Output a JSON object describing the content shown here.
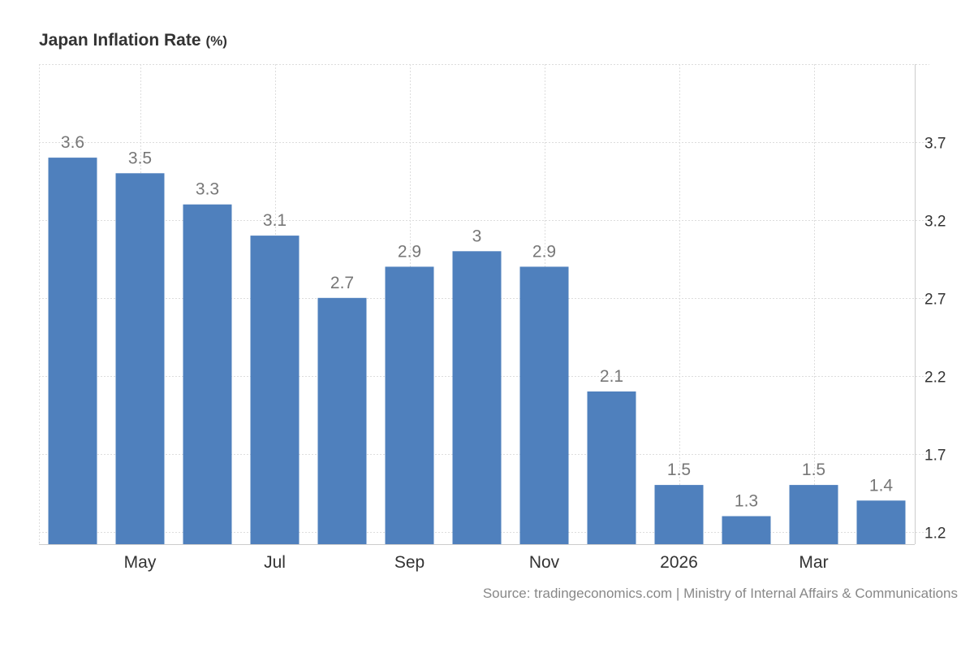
{
  "header": {
    "title": "Japan Inflation Rate",
    "unit": "(%)"
  },
  "footer": {
    "source": "Source: tradingeconomics.com | Ministry of Internal Affairs & Communications"
  },
  "colors": {
    "bar": "#4f80bd",
    "data_label": "#777777",
    "axis_text": "#333333",
    "grid": "#dddddd",
    "axis_line": "#cccccc"
  },
  "chart_data": {
    "type": "bar",
    "title": "Japan Inflation Rate",
    "unit": "(%)",
    "values": [
      3.6,
      3.5,
      3.3,
      3.1,
      2.7,
      2.9,
      3.0,
      2.9,
      2.1,
      1.5,
      1.3,
      1.5,
      1.4
    ],
    "data_labels": [
      "3.6",
      "3.5",
      "3.3",
      "3.1",
      "2.7",
      "2.9",
      "3",
      "2.9",
      "2.1",
      "1.5",
      "1.3",
      "1.5",
      "1.4"
    ],
    "x_tick_labels": [
      "",
      "May",
      "",
      "Jul",
      "",
      "Sep",
      "",
      "Nov",
      "",
      "2026",
      "",
      "Mar",
      ""
    ],
    "y_ticks": [
      "1.2",
      "1.7",
      "2.2",
      "2.7",
      "3.2",
      "3.7"
    ],
    "y_tick_values": [
      1.2,
      1.7,
      2.2,
      2.7,
      3.2,
      3.7
    ],
    "ylim": [
      1.12,
      4.2
    ],
    "y_axis_side": "right",
    "grid": true
  }
}
